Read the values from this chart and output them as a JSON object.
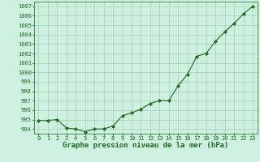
{
  "x": [
    0,
    1,
    2,
    3,
    4,
    5,
    6,
    7,
    8,
    9,
    10,
    11,
    12,
    13,
    14,
    15,
    16,
    17,
    18,
    19,
    20,
    21,
    22,
    23
  ],
  "y": [
    994.9,
    994.9,
    995.0,
    994.1,
    994.0,
    993.7,
    994.0,
    994.0,
    994.3,
    995.4,
    995.7,
    996.1,
    996.7,
    997.0,
    997.0,
    998.6,
    999.8,
    1001.7,
    1002.0,
    1003.3,
    1004.3,
    1005.2,
    1006.2,
    1007.0
  ],
  "line_color": "#1a6b1a",
  "marker": "D",
  "marker_size": 2.2,
  "bg_color": "#cdf0e0",
  "grid_color": "#99ccaa",
  "ylim": [
    993.5,
    1007.5
  ],
  "yticks": [
    994,
    995,
    996,
    997,
    998,
    999,
    1000,
    1001,
    1002,
    1003,
    1004,
    1005,
    1006,
    1007
  ],
  "xticks": [
    0,
    1,
    2,
    3,
    4,
    5,
    6,
    7,
    8,
    9,
    10,
    11,
    12,
    13,
    14,
    15,
    16,
    17,
    18,
    19,
    20,
    21,
    22,
    23
  ],
  "xlabel": "Graphe pression niveau de la mer (hPa)",
  "xlabel_color": "#1a6b1a",
  "tick_color": "#1a6b1a",
  "tick_label_color": "#1a6b1a",
  "xlabel_fontsize": 6.5,
  "tick_fontsize": 5.0
}
